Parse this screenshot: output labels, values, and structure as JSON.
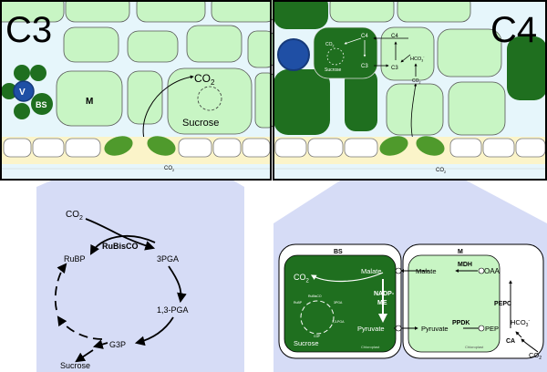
{
  "c3": {
    "panel_title": "C3",
    "vein_label": "V",
    "bundle_sheath_label": "BS",
    "mesophyll_label": "M",
    "co2_label": "CO",
    "co2_sub": "2",
    "sucrose_label": "Sucrose",
    "stoma_co2_label": "CO",
    "stoma_co2_sub": "2"
  },
  "c4": {
    "panel_title": "C4",
    "mini_co2": "CO",
    "mini_co2_sub": "2",
    "mini_c4_bs": "C4",
    "mini_c3_bs": "C3",
    "mini_sucrose": "Sucrose",
    "mini_c4_m": "C4",
    "mini_c3_m": "C3",
    "mini_hco3": "HCO",
    "mini_hco3_sub": "3",
    "mini_hco3_sup": "-",
    "mini_co2_m": "CO",
    "mini_co2_m_sub": "2",
    "stoma_co2_label": "CO",
    "stoma_co2_sub": "2"
  },
  "calvin": {
    "co2": "CO",
    "co2_sub": "2",
    "enzyme": "RuBisCO",
    "rubp": "RuBP",
    "pga3": "3PGA",
    "pga13": "1,3-PGA",
    "g3p": "G3P",
    "sucrose": "Sucrose"
  },
  "c4_detail": {
    "bs_header": "BS",
    "m_header": "M",
    "co2": "CO",
    "co2_sub": "2",
    "malate_bs": "Malate",
    "malate_m": "Malate",
    "mdh": "MDH",
    "oaa": "OAA",
    "nadp_me_line1": "NADP-",
    "nadp_me_line2": "ME",
    "pepc": "PEPC",
    "pyruvate_bs": "Pyruvate",
    "pyruvate_m": "Pyruvate",
    "ppdk": "PPDK",
    "pep": "PEP",
    "hco3": "HCO",
    "hco3_sub": "3",
    "hco3_sup": "-",
    "ca": "CA",
    "co2_out": "CO",
    "co2_out_sub": "2",
    "sucrose": "Sucrose",
    "chloroplast_bs": "Chloroplast",
    "chloroplast_m": "Chloroplast",
    "tiny_rubp": "RuBP",
    "tiny_rubisco": "RuBisCO",
    "tiny_3pga": "3PGA",
    "tiny_13pga": "1,3-PGA",
    "tiny_g3p": "G3P"
  },
  "colors": {
    "cell_light_green": "#c8f5c4",
    "bundle_sheath_dark": "#1f6f1f",
    "vein_blue": "#1f4fa5",
    "intercellular": "#e6f6fb",
    "zoom_lavender": "#d6dcf6",
    "guard_cell": "#4f9a2c"
  }
}
